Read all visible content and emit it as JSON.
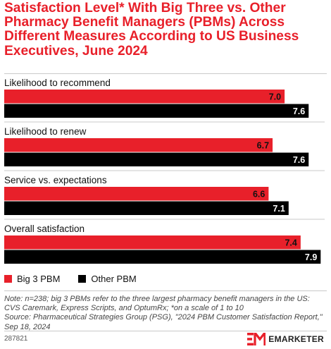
{
  "title": "Satisfaction Level* With Big Three vs. Other Pharmacy Benefit Managers (PBMs) Across Different Measures According to US Business Executives, June 2024",
  "colors": {
    "accent": "#e8202a",
    "series_big3": "#e8202a",
    "series_other": "#000000"
  },
  "chart_data": {
    "type": "bar",
    "orientation": "horizontal",
    "categories": [
      "Likelihood to recommend",
      "Likelihood to renew",
      "Service vs. expectations",
      "Overall satisfaction"
    ],
    "series": [
      {
        "name": "Big 3 PBM",
        "values": [
          7.0,
          6.7,
          6.6,
          7.4
        ],
        "labels": [
          "7.0",
          "6.7",
          "6.6",
          "7.4"
        ]
      },
      {
        "name": "Other PBM",
        "values": [
          7.6,
          7.6,
          7.1,
          7.9
        ],
        "labels": [
          "7.6",
          "7.6",
          "7.1",
          "7.9"
        ]
      }
    ],
    "xlim": [
      0,
      8.0
    ],
    "grid": false,
    "legend": "bottom-left"
  },
  "legend": [
    {
      "label": "Big 3 PBM",
      "color": "#e8202a"
    },
    {
      "label": "Other PBM",
      "color": "#000000"
    }
  ],
  "note": "Note: n=238; big 3 PBMs refer to the three largest pharmacy benefit managers in the US: CVS Caremark, Express Scripts, and OptumRx; *on a scale of 1 to 10",
  "source": "Source: Pharmaceutical Strategies Group (PSG), \"2024 PBM Customer Satisfaction Report,\" Sep 18, 2024",
  "chart_id": "287821",
  "brand": "EMARKETER"
}
